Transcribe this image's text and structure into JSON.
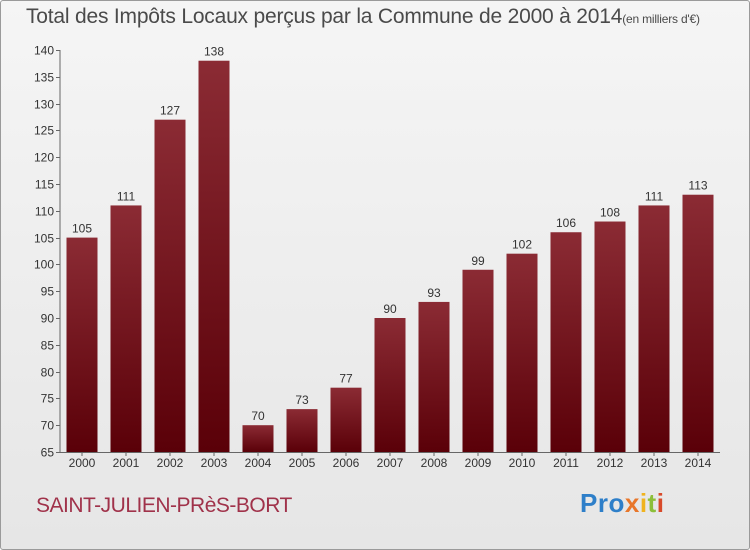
{
  "chart_data": {
    "type": "bar",
    "title": "Total des Impôts Locaux perçus par la Commune de 2000 à 2014",
    "title_unit": "(en milliers d'€)",
    "categories": [
      "2000",
      "2001",
      "2002",
      "2003",
      "2004",
      "2005",
      "2006",
      "2007",
      "2008",
      "2009",
      "2010",
      "2011",
      "2012",
      "2013",
      "2014"
    ],
    "values": [
      105,
      111,
      127,
      138,
      70,
      73,
      77,
      90,
      93,
      99,
      102,
      106,
      108,
      111,
      113
    ],
    "ylim": [
      65,
      140
    ],
    "yticks": [
      65,
      70,
      75,
      80,
      85,
      90,
      95,
      100,
      105,
      110,
      115,
      120,
      125,
      130,
      135,
      140
    ],
    "grid": false,
    "bar_color_top": "#8b2b34",
    "bar_color_bottom": "#5a0008",
    "xlabel": "",
    "ylabel": ""
  },
  "footer": {
    "commune": "SAINT-JULIEN-PRèS-BORT",
    "logo_parts": [
      "Pro",
      "x",
      "i",
      "t",
      "i"
    ]
  }
}
